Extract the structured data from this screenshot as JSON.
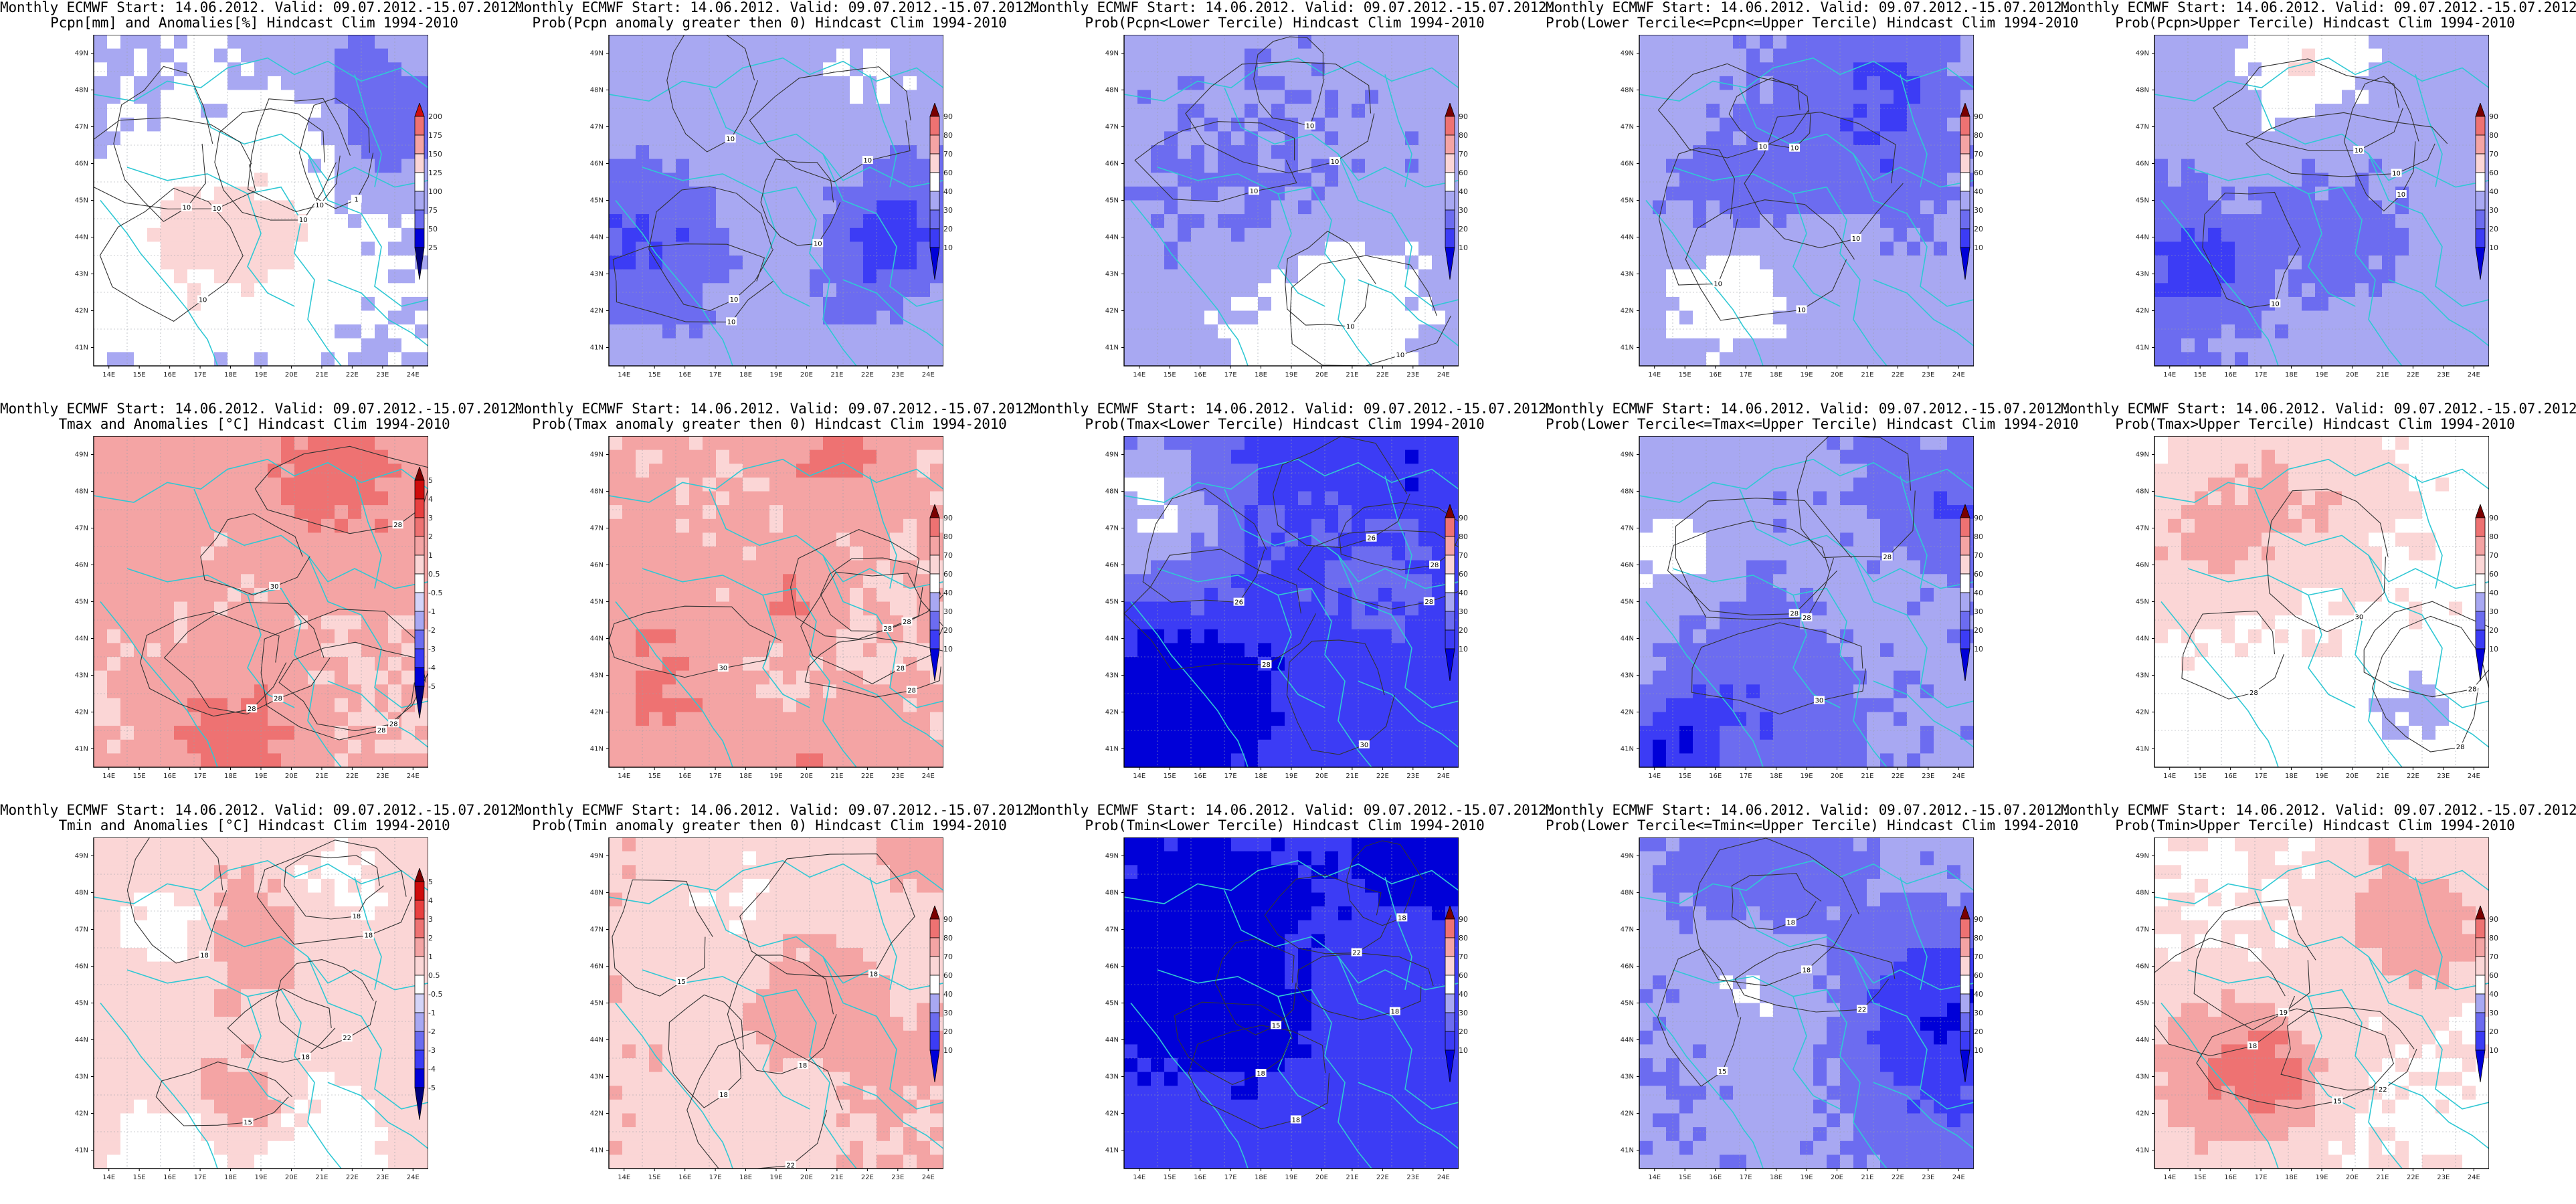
{
  "header_line": "Monthly ECMWF Start: 14.06.2012. Valid: 09.07.2012.-15.07.2012.",
  "lat_labels": [
    "49N",
    "48N",
    "47N",
    "46N",
    "45N",
    "44N",
    "43N",
    "42N",
    "41N"
  ],
  "lon_labels": [
    "14E",
    "15E",
    "16E",
    "17E",
    "18E",
    "19E",
    "20E",
    "21E",
    "22E",
    "23E",
    "24E"
  ],
  "colors": {
    "blues": [
      "#00007a",
      "#0000d8",
      "#3c3cf5",
      "#6c6cf0",
      "#a8a8f2",
      "#d4d4f8"
    ],
    "reds": [
      "#fbd6d6",
      "#f4a4a4",
      "#ee7272",
      "#e84040",
      "#cf0c0c",
      "#7a0000"
    ],
    "white": "#ffffff",
    "coast": "#30c8d4",
    "contour": "#333333"
  },
  "scales": {
    "prob": [
      "10",
      "20",
      "30",
      "40",
      "60",
      "70",
      "80",
      "90"
    ],
    "pcpn": [
      "25",
      "50",
      "75",
      "100",
      "125",
      "150",
      "175",
      "200"
    ],
    "temp": [
      "-5",
      "-4",
      "-3",
      "-2",
      "-1",
      "-0.5",
      "0.5",
      "1",
      "2",
      "3",
      "4",
      "5"
    ]
  },
  "panels": [
    {
      "subtitle": "Pcpn[mm] and Anomalies[%] Hindcast Clim 1994-2010",
      "scale": "pcpn",
      "bias": -0.15,
      "seed": 11,
      "contours": [
        "10",
        "10",
        "10",
        "10",
        "10",
        "1"
      ]
    },
    {
      "subtitle": "Prob(Pcpn anomaly greater then 0) Hindcast Clim 1994-2010",
      "scale": "prob",
      "bias": -0.25,
      "seed": 23,
      "contours": [
        "10",
        "10",
        "10",
        "10",
        "10"
      ]
    },
    {
      "subtitle": "Prob(Pcpn<Lower Tercile) Hindcast Clim 1994-2010",
      "scale": "prob",
      "bias": -0.35,
      "seed": 37,
      "contours": [
        "10",
        "10",
        "10",
        "10",
        "10"
      ]
    },
    {
      "subtitle": "Prob(Lower Tercile<=Pcpn<=Upper Tercile) Hindcast Clim 1994-2010",
      "scale": "prob",
      "bias": -0.3,
      "seed": 41,
      "contours": [
        "10",
        "10",
        "10",
        "10",
        "10"
      ]
    },
    {
      "subtitle": "Prob(Pcpn>Upper Tercile) Hindcast Clim 1994-2010",
      "scale": "prob",
      "bias": -0.3,
      "seed": 53,
      "contours": [
        "10",
        "10",
        "10",
        "10"
      ]
    },
    {
      "subtitle": "Tmax and Anomalies [°C] Hindcast Clim 1994-2010",
      "scale": "temp",
      "bias": 0.45,
      "seed": 61,
      "contours": [
        "28",
        "28",
        "28",
        "28",
        "30",
        "28"
      ]
    },
    {
      "subtitle": "Prob(Tmax anomaly greater then 0) Hindcast Clim 1994-2010",
      "scale": "prob",
      "bias": 0.45,
      "seed": 73,
      "contours": [
        "28",
        "28",
        "28",
        "30",
        "28"
      ]
    },
    {
      "subtitle": "Prob(Tmax<Lower Tercile) Hindcast Clim 1994-2010",
      "scale": "prob",
      "bias": -0.85,
      "seed": 79,
      "contours": [
        "28",
        "28",
        "26",
        "26",
        "28",
        "30"
      ]
    },
    {
      "subtitle": "Prob(Lower Tercile<=Tmax<=Upper Tercile) Hindcast Clim 1994-2010",
      "scale": "prob",
      "bias": -0.35,
      "seed": 89,
      "contours": [
        "28",
        "28",
        "28",
        "30"
      ]
    },
    {
      "subtitle": "Prob(Tmax>Upper Tercile) Hindcast Clim 1994-2010",
      "scale": "prob",
      "bias": 0.05,
      "seed": 97,
      "contours": [
        "28",
        "28",
        "28",
        "30"
      ]
    },
    {
      "subtitle": "Tmin and Anomalies [°C] Hindcast Clim 1994-2010",
      "scale": "temp",
      "bias": 0.35,
      "seed": 101,
      "contours": [
        "15",
        "18",
        "18",
        "18",
        "22",
        "18"
      ]
    },
    {
      "subtitle": "Prob(Tmin anomaly greater then 0) Hindcast Clim 1994-2010",
      "scale": "prob",
      "bias": 0.45,
      "seed": 109,
      "contours": [
        "15",
        "18",
        "18",
        "18",
        "22"
      ]
    },
    {
      "subtitle": "Prob(Tmin<Lower Tercile) Hindcast Clim 1994-2010",
      "scale": "prob",
      "bias": -0.85,
      "seed": 113,
      "contours": [
        "15",
        "18",
        "18",
        "18",
        "18",
        "22"
      ]
    },
    {
      "subtitle": "Prob(Lower Tercile<=Tmin<=Upper Tercile) Hindcast Clim 1994-2010",
      "scale": "prob",
      "bias": -0.35,
      "seed": 127,
      "contours": [
        "15",
        "18",
        "18",
        "22"
      ]
    },
    {
      "subtitle": "Prob(Tmin>Upper Tercile) Hindcast Clim 1994-2010",
      "scale": "prob",
      "bias": 0.1,
      "seed": 131,
      "contours": [
        "15",
        "18",
        "19",
        "22"
      ]
    }
  ]
}
